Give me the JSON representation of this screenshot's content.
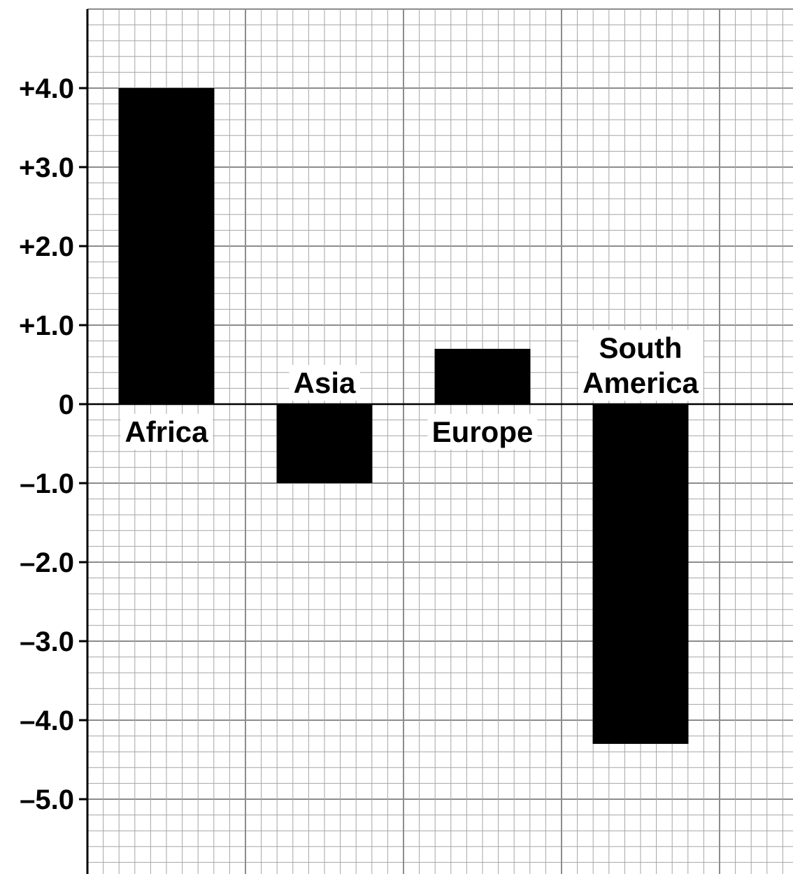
{
  "chart_data": {
    "type": "bar",
    "title": "",
    "xlabel": "",
    "ylabel": "",
    "categories": [
      "Africa",
      "Asia",
      "Europe",
      "South America"
    ],
    "category_label_lines": [
      [
        "Africa"
      ],
      [
        "Asia"
      ],
      [
        "Europe"
      ],
      [
        "South",
        "America"
      ]
    ],
    "values": [
      4.0,
      -1.0,
      0.7,
      -4.3
    ],
    "ylim": [
      -5.95,
      5.0
    ],
    "y_ticks": [
      4.0,
      3.0,
      2.0,
      1.0,
      0,
      -1.0,
      -2.0,
      -3.0,
      -4.0,
      -5.0
    ],
    "y_tick_labels": [
      "+4.0",
      "+3.0",
      "+2.0",
      "+1.0",
      "0",
      "–1.0",
      "–2.0",
      "–3.0",
      "–4.0",
      "–5.0"
    ],
    "grid": true,
    "legend": "none",
    "colors": {
      "bar": "#000000",
      "major_grid": "#8c8c8c",
      "minor_grid": "#a6a6a6",
      "axis": "#000000",
      "background": "#ffffff"
    }
  }
}
